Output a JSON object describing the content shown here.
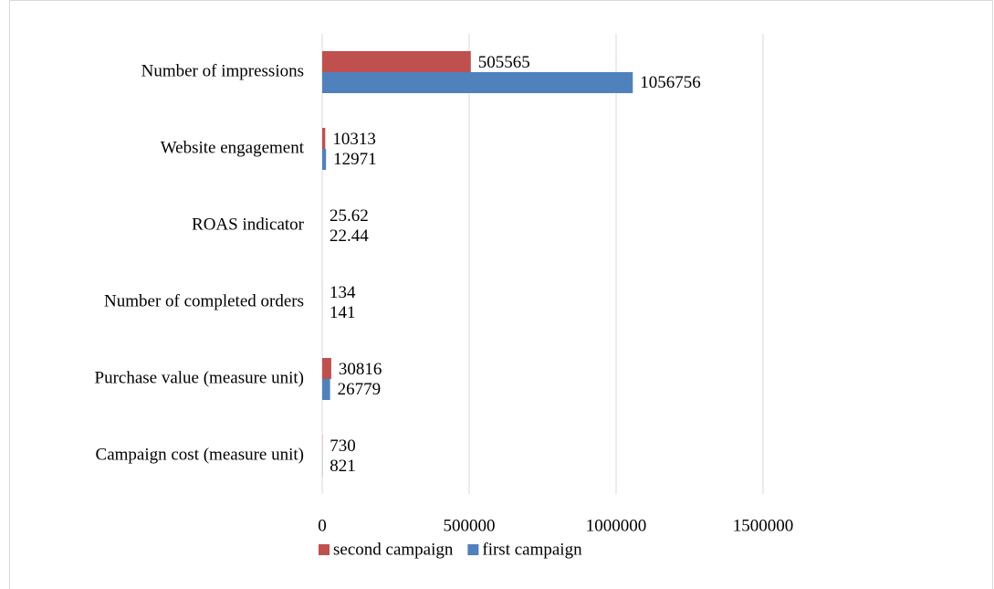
{
  "chart_data": {
    "type": "barh",
    "categories": [
      "Number of impressions",
      "Website engagement",
      "ROAS indicator",
      "Number of completed orders",
      "Purchase value (measure unit)",
      "Campaign cost  (measure unit)"
    ],
    "series": [
      {
        "name": "second campaign",
        "color": "#c0504d",
        "values": [
          505565,
          10313,
          25.62,
          134,
          30816,
          730
        ]
      },
      {
        "name": "first campaign",
        "color": "#4f81bd",
        "values": [
          1056756,
          12971,
          22.44,
          141,
          26779,
          821
        ]
      }
    ],
    "xlim": [
      0,
      2000000
    ],
    "xticks": [
      0,
      500000,
      1000000,
      1500000
    ],
    "grid": true,
    "legend": "bottom"
  }
}
